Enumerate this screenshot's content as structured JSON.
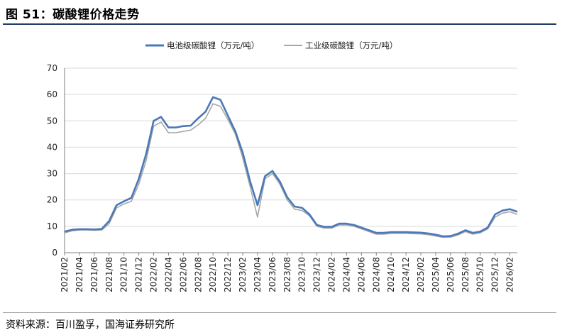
{
  "header": {
    "title": "图 51：碳酸锂价格走势"
  },
  "footer": {
    "source": "资料来源：百川盈孚，国海证券研究所"
  },
  "colors": {
    "series1": "#4a78b8",
    "series2": "#a6a6a6",
    "title_rule": "#1f3b63"
  },
  "chart_data": {
    "type": "line",
    "title": "",
    "xlabel": "",
    "ylabel": "",
    "ylim": [
      0,
      70
    ],
    "yticks": [
      0,
      10,
      20,
      30,
      40,
      50,
      60,
      70
    ],
    "xlim": [
      "2021-02",
      "2026-03"
    ],
    "xticks": [
      "2021/02",
      "2021/04",
      "2021/06",
      "2021/08",
      "2021/10",
      "2021/12",
      "2022/02",
      "2022/04",
      "2022/06",
      "2022/08",
      "2022/10",
      "2022/12",
      "2023/02",
      "2023/04",
      "2023/06",
      "2023/08",
      "2023/10",
      "2023/12",
      "2024/02",
      "2024/04",
      "2024/06",
      "2024/08",
      "2024/10",
      "2024/12",
      "2025/02",
      "2025/04",
      "2025/06",
      "2025/08",
      "2025/10",
      "2025/12",
      "2026/02"
    ],
    "grid": "horizontal",
    "legend_position": "top-center",
    "series": [
      {
        "name": "电池级碳酸锂（万元/吨）",
        "x": [
          "2021-02",
          "2021-03",
          "2021-04",
          "2021-05",
          "2021-06",
          "2021-07",
          "2021-08",
          "2021-09",
          "2021-10",
          "2021-11",
          "2021-12",
          "2022-01",
          "2022-02",
          "2022-03",
          "2022-04",
          "2022-05",
          "2022-06",
          "2022-07",
          "2022-08",
          "2022-09",
          "2022-10",
          "2022-11",
          "2022-12",
          "2023-01",
          "2023-02",
          "2023-03",
          "2023-04",
          "2023-05",
          "2023-06",
          "2023-07",
          "2023-08",
          "2023-09",
          "2023-10",
          "2023-11",
          "2023-12",
          "2024-01",
          "2024-02",
          "2024-03",
          "2024-04",
          "2024-05",
          "2024-06",
          "2024-07",
          "2024-08",
          "2024-09",
          "2024-10",
          "2024-11",
          "2024-12",
          "2025-01",
          "2025-02",
          "2025-03",
          "2025-04",
          "2025-05",
          "2025-06",
          "2025-07",
          "2025-08",
          "2025-09",
          "2025-10",
          "2025-11",
          "2025-12",
          "2026-01",
          "2026-02",
          "2026-03"
        ],
        "values": [
          8.0,
          8.7,
          8.9,
          8.9,
          8.8,
          9.0,
          12.0,
          18.0,
          19.5,
          20.8,
          28.0,
          37.5,
          50.0,
          51.5,
          47.5,
          47.5,
          48.0,
          48.2,
          51.0,
          53.5,
          59.0,
          58.0,
          52.0,
          46.0,
          38.0,
          27.0,
          18.0,
          29.0,
          31.0,
          27.0,
          21.0,
          17.5,
          17.0,
          14.5,
          10.5,
          9.8,
          9.8,
          11.0,
          11.0,
          10.5,
          9.5,
          8.5,
          7.5,
          7.5,
          7.8,
          7.8,
          7.8,
          7.7,
          7.6,
          7.3,
          6.8,
          6.2,
          6.3,
          7.2,
          8.5,
          7.5,
          8.0,
          9.5,
          14.5,
          16.0,
          16.5,
          15.5
        ]
      },
      {
        "name": "工业级碳酸锂（万元/吨）",
        "x": [
          "2021-02",
          "2021-03",
          "2021-04",
          "2021-05",
          "2021-06",
          "2021-07",
          "2021-08",
          "2021-09",
          "2021-10",
          "2021-11",
          "2021-12",
          "2022-01",
          "2022-02",
          "2022-03",
          "2022-04",
          "2022-05",
          "2022-06",
          "2022-07",
          "2022-08",
          "2022-09",
          "2022-10",
          "2022-11",
          "2022-12",
          "2023-01",
          "2023-02",
          "2023-03",
          "2023-04",
          "2023-05",
          "2023-06",
          "2023-07",
          "2023-08",
          "2023-09",
          "2023-10",
          "2023-11",
          "2023-12",
          "2024-01",
          "2024-02",
          "2024-03",
          "2024-04",
          "2024-05",
          "2024-06",
          "2024-07",
          "2024-08",
          "2024-09",
          "2024-10",
          "2024-11",
          "2024-12",
          "2025-01",
          "2025-02",
          "2025-03",
          "2025-04",
          "2025-05",
          "2025-06",
          "2025-07",
          "2025-08",
          "2025-09",
          "2025-10",
          "2025-11",
          "2025-12",
          "2026-01",
          "2026-02",
          "2026-03"
        ],
        "values": [
          7.5,
          8.3,
          8.6,
          8.6,
          8.5,
          8.6,
          11.0,
          17.0,
          18.5,
          19.5,
          26.0,
          35.0,
          48.0,
          49.5,
          45.5,
          45.5,
          46.0,
          46.5,
          48.5,
          51.0,
          56.5,
          55.5,
          50.5,
          45.0,
          36.0,
          25.0,
          13.5,
          28.0,
          30.0,
          26.0,
          20.0,
          16.5,
          16.0,
          14.0,
          10.0,
          9.3,
          9.3,
          10.5,
          10.5,
          10.0,
          9.0,
          8.0,
          7.0,
          7.0,
          7.3,
          7.3,
          7.3,
          7.2,
          7.1,
          6.8,
          6.3,
          5.8,
          5.9,
          6.7,
          8.0,
          7.0,
          7.5,
          9.0,
          13.5,
          15.0,
          15.5,
          14.5
        ]
      }
    ]
  }
}
